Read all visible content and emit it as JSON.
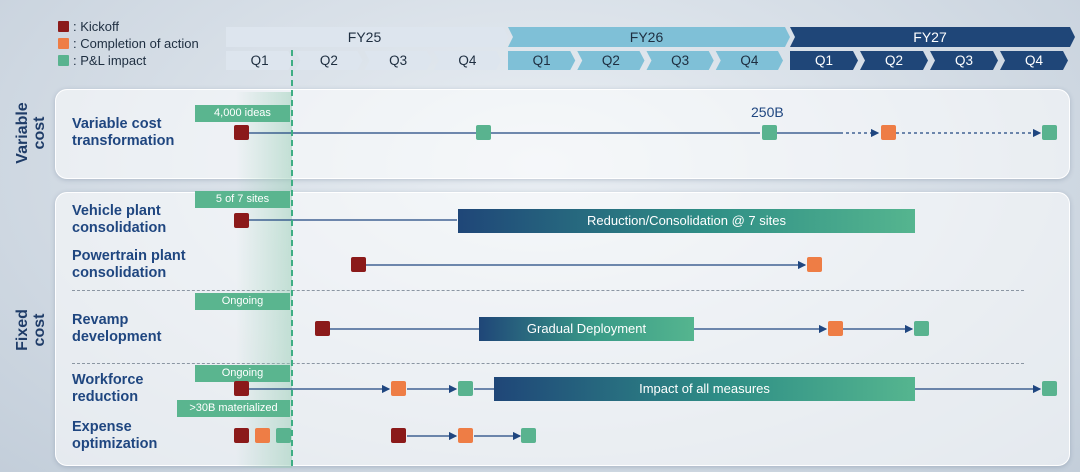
{
  "legend": {
    "kickoff": ": Kickoff",
    "completion": ": Completion of action",
    "pl": ": P&L impact"
  },
  "colors": {
    "kickoff": "#8b1a1a",
    "completion": "#ee7d45",
    "pl_impact": "#59b38f",
    "fy25": "#dde5ee",
    "fy26": "#7fc0d7",
    "fy27": "#1f4678"
  },
  "timeline": {
    "fy": [
      "FY25",
      "FY26",
      "FY27"
    ],
    "quarters": [
      "Q1",
      "Q2",
      "Q3",
      "Q4",
      "Q1",
      "Q2",
      "Q3",
      "Q4",
      "Q1",
      "Q2",
      "Q3",
      "Q4"
    ]
  },
  "sections": {
    "variable": "Variable\ncost",
    "fixed": "Fixed\ncost"
  },
  "rows": {
    "variable_cost": {
      "label": "Variable cost\ntransformation",
      "tag": "4,000 ideas",
      "value": "250B"
    },
    "vehicle_plant": {
      "label": "Vehicle plant\nconsolidation",
      "tag": "5 of 7 sites",
      "bar": "Reduction/Consolidation @ 7 sites"
    },
    "powertrain_plant": {
      "label": "Powertrain plant\nconsolidation"
    },
    "revamp": {
      "label": "Revamp\ndevelopment",
      "tag": "Ongoing",
      "bar": "Gradual Deployment"
    },
    "workforce": {
      "label": "Workforce\nreduction",
      "tag": "Ongoing",
      "tag2": ">30B materialized",
      "bar": "Impact of all measures"
    },
    "expense": {
      "label": "Expense\noptimization"
    }
  }
}
